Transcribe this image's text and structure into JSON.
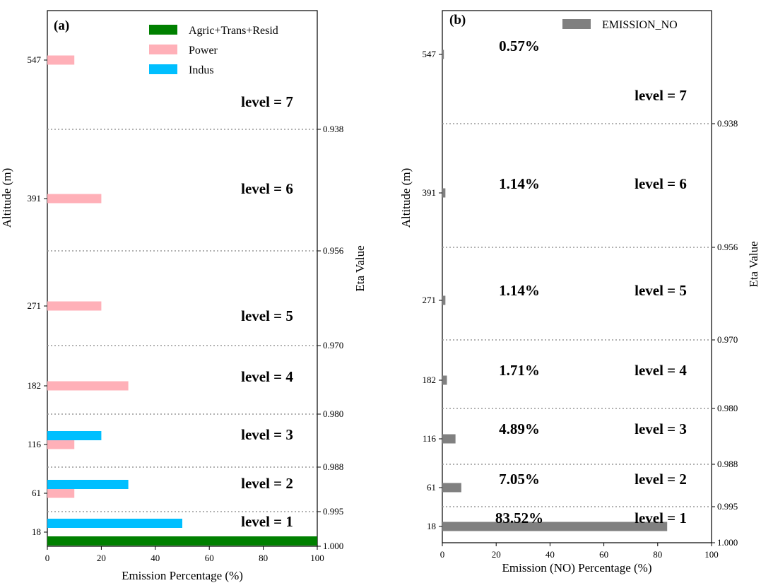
{
  "chart_data": [
    {
      "type": "bar",
      "orientation": "horizontal",
      "panel_label": "(a)",
      "xlabel": "Emission  Percentage  (%)",
      "ylabel": "Altitude  (m)",
      "right_ylabel": "Eta  Value",
      "xlim": [
        0,
        100
      ],
      "x_ticks": [
        "0",
        "20",
        "40",
        "60",
        "80",
        "100"
      ],
      "grid": false,
      "legend_position": "top-right",
      "legend": [
        {
          "name": "Agric+Trans+Resid",
          "color": "#008000"
        },
        {
          "name": "Power",
          "color": "#ffb0b8"
        },
        {
          "name": "Indus",
          "color": "#00bfff"
        }
      ],
      "levels": [
        {
          "altitude": "18",
          "label": "level = 1"
        },
        {
          "altitude": "61",
          "label": "level = 2"
        },
        {
          "altitude": "116",
          "label": "level = 3"
        },
        {
          "altitude": "182",
          "label": "level = 4"
        },
        {
          "altitude": "271",
          "label": "level = 5"
        },
        {
          "altitude": "391",
          "label": "level = 6"
        },
        {
          "altitude": "547",
          "label": "level = 7"
        }
      ],
      "eta_ticks": [
        "1.000",
        "0.995",
        "0.988",
        "0.980",
        "0.970",
        "0.956",
        "0.938"
      ],
      "series": [
        {
          "name": "Agric+Trans+Resid",
          "values": {
            "18": 100
          }
        },
        {
          "name": "Power",
          "values": {
            "61": 10,
            "116": 10,
            "182": 30,
            "271": 20,
            "391": 20,
            "547": 10
          }
        },
        {
          "name": "Indus",
          "values": {
            "18": 50,
            "61": 30,
            "116": 20
          }
        }
      ]
    },
    {
      "type": "bar",
      "orientation": "horizontal",
      "panel_label": "(b)",
      "xlabel": "Emission  (NO)  Percentage  (%)",
      "ylabel": "Altitude  (m)",
      "right_ylabel": "Eta  Value",
      "xlim": [
        0,
        100
      ],
      "x_ticks": [
        "0",
        "20",
        "40",
        "60",
        "80",
        "100"
      ],
      "grid": false,
      "legend_position": "top-right",
      "legend": [
        {
          "name": "EMISSION_NO",
          "color": "#808080"
        }
      ],
      "levels": [
        {
          "altitude": "18",
          "label": "level = 1",
          "percent_label": "83.52%",
          "value": 83.52
        },
        {
          "altitude": "61",
          "label": "level = 2",
          "percent_label": "7.05%",
          "value": 7.05
        },
        {
          "altitude": "116",
          "label": "level = 3",
          "percent_label": "4.89%",
          "value": 4.89
        },
        {
          "altitude": "182",
          "label": "level = 4",
          "percent_label": "1.71%",
          "value": 1.71
        },
        {
          "altitude": "271",
          "label": "level = 5",
          "percent_label": "1.14%",
          "value": 1.14
        },
        {
          "altitude": "391",
          "label": "level = 6",
          "percent_label": "1.14%",
          "value": 1.14
        },
        {
          "altitude": "547",
          "label": "level = 7",
          "percent_label": "0.57%",
          "value": 0.57
        }
      ],
      "eta_ticks": [
        "1.000",
        "0.995",
        "0.988",
        "0.980",
        "0.970",
        "0.956",
        "0.938"
      ],
      "series": [
        {
          "name": "EMISSION_NO",
          "values": {
            "18": 83.52,
            "61": 7.05,
            "116": 4.89,
            "182": 1.71,
            "271": 1.14,
            "391": 1.14,
            "547": 0.57
          }
        }
      ]
    }
  ]
}
